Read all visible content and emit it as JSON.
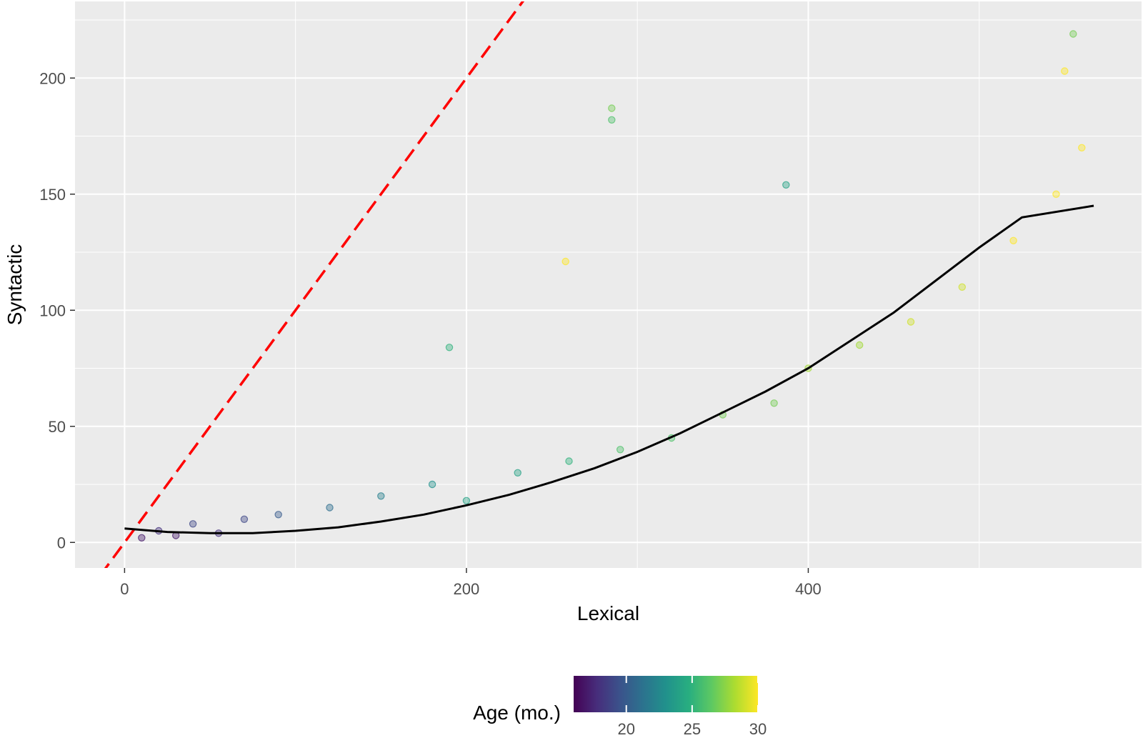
{
  "chart_data": {
    "type": "scatter",
    "title": "",
    "xlabel": "Lexical",
    "ylabel": "Syntactic",
    "xlim": [
      -29,
      595
    ],
    "ylim": [
      -11,
      233
    ],
    "x_ticks": [
      0,
      200,
      400
    ],
    "y_ticks": [
      0,
      50,
      100,
      150,
      200
    ],
    "x_tick_labels": [
      "0",
      "200",
      "400"
    ],
    "y_tick_labels": [
      "0",
      "50",
      "100",
      "150",
      "200"
    ],
    "grid": true,
    "panel_background": "#ebebeb",
    "legend": {
      "title": "Age (mo.)",
      "placement": "bottom",
      "type": "colorbar",
      "range": [
        16,
        30
      ],
      "ticks": [
        20,
        25,
        30
      ],
      "tick_labels": [
        "20",
        "25",
        "30"
      ],
      "colormap": "viridis",
      "colors": [
        "#440154",
        "#472d7b",
        "#3b528b",
        "#2c728e",
        "#21918c",
        "#28ae80",
        "#5ec962",
        "#addc30",
        "#fde725"
      ]
    },
    "reference_line": {
      "type": "identity",
      "slope": 1,
      "intercept": 0,
      "color": "#ff0000",
      "style": "dashed"
    },
    "fit_curve": {
      "color": "#000000",
      "points": [
        [
          0,
          6
        ],
        [
          25,
          4.5
        ],
        [
          50,
          4
        ],
        [
          75,
          4
        ],
        [
          100,
          5
        ],
        [
          125,
          6.5
        ],
        [
          150,
          9
        ],
        [
          175,
          12
        ],
        [
          200,
          16
        ],
        [
          225,
          20.5
        ],
        [
          250,
          26
        ],
        [
          275,
          32
        ],
        [
          300,
          39
        ],
        [
          325,
          47
        ],
        [
          350,
          56
        ],
        [
          375,
          65
        ],
        [
          400,
          75
        ],
        [
          425,
          87
        ],
        [
          450,
          99
        ],
        [
          475,
          113
        ],
        [
          500,
          127
        ],
        [
          525,
          140
        ],
        [
          567,
          145
        ]
      ]
    },
    "points_sample": [
      [
        10,
        2,
        17
      ],
      [
        20,
        5,
        18
      ],
      [
        30,
        3,
        17
      ],
      [
        40,
        8,
        19
      ],
      [
        55,
        4,
        18
      ],
      [
        70,
        10,
        19
      ],
      [
        90,
        12,
        20
      ],
      [
        120,
        15,
        21
      ],
      [
        150,
        20,
        22
      ],
      [
        180,
        25,
        23
      ],
      [
        200,
        18,
        24
      ],
      [
        230,
        30,
        24
      ],
      [
        260,
        35,
        25
      ],
      [
        290,
        40,
        26
      ],
      [
        320,
        45,
        26
      ],
      [
        350,
        55,
        27
      ],
      [
        380,
        60,
        27
      ],
      [
        400,
        75,
        28
      ],
      [
        430,
        85,
        28
      ],
      [
        460,
        95,
        29
      ],
      [
        490,
        110,
        29
      ],
      [
        520,
        130,
        30
      ],
      [
        545,
        150,
        30
      ],
      [
        560,
        170,
        30
      ],
      [
        285,
        187,
        27
      ],
      [
        285,
        182,
        26
      ],
      [
        258,
        121,
        30
      ],
      [
        190,
        84,
        25
      ],
      [
        555,
        219,
        27
      ],
      [
        550,
        203,
        30
      ],
      [
        387,
        154,
        24
      ]
    ]
  }
}
